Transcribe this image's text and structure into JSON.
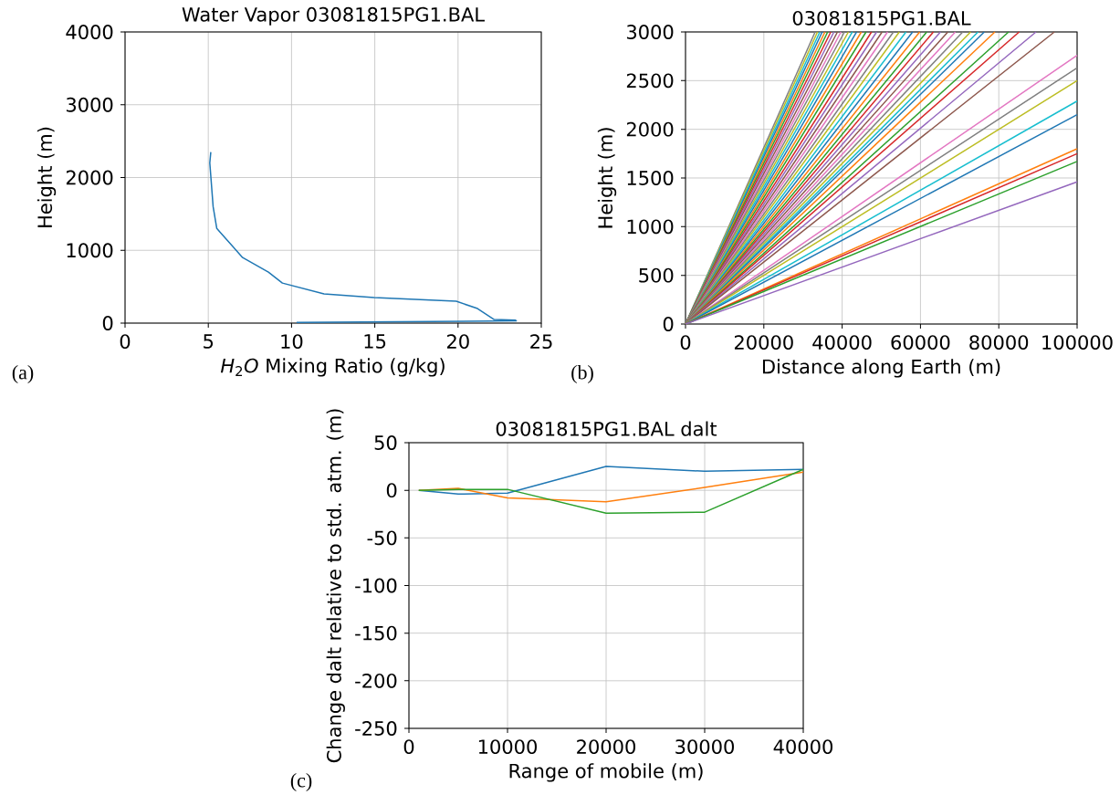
{
  "chart_data": [
    {
      "type": "line",
      "title": "Water Vapor 03081815PG1.BAL",
      "xlabel": "*H*$_{2}$*O* Mixing Ratio (g/kg)",
      "ylabel": "Height (m)",
      "xlim": [
        0,
        25
      ],
      "ylim": [
        0,
        4000
      ],
      "xticks": [
        0,
        5,
        10,
        15,
        20,
        25
      ],
      "yticks": [
        0,
        1000,
        2000,
        3000,
        4000
      ],
      "grid": true,
      "annotations": [
        "(a)"
      ],
      "series": [
        {
          "color": "#1f77b4",
          "x": [
            5.15,
            5.09,
            5.29,
            5.51,
            7.06,
            8.61,
            9.45,
            11.95,
            14.96,
            19.89,
            21.17,
            22.17,
            23.45,
            23.5,
            10.3
          ],
          "values": [
            2350,
            2200,
            1600,
            1300,
            900,
            700,
            550,
            400,
            350,
            300,
            200,
            50,
            40,
            30,
            10
          ]
        }
      ]
    },
    {
      "type": "line",
      "title": "03081815PG1.BAL",
      "xlabel": "Distance along Earth (m)",
      "ylabel": "Height (m)",
      "xlim": [
        0,
        100000
      ],
      "ylim": [
        0,
        3000
      ],
      "xticks": [
        0,
        20000,
        40000,
        60000,
        80000,
        100000
      ],
      "yticks": [
        0,
        500,
        1000,
        1500,
        2000,
        2500,
        3000
      ],
      "grid": true,
      "annotations": [
        "(b)"
      ],
      "series": [
        {
          "color": "#7f7f7f",
          "x": [
            0,
            33100
          ],
          "values": [
            0,
            3000
          ]
        },
        {
          "color": "#bcbd22",
          "x": [
            0,
            33700
          ],
          "values": [
            0,
            3000
          ]
        },
        {
          "color": "#17becf",
          "x": [
            0,
            34300
          ],
          "values": [
            0,
            3000
          ]
        },
        {
          "color": "#1f77b4",
          "x": [
            0,
            34900
          ],
          "values": [
            0,
            3000
          ]
        },
        {
          "color": "#ff7f0e",
          "x": [
            0,
            35600
          ],
          "values": [
            0,
            3000
          ]
        },
        {
          "color": "#2ca02c",
          "x": [
            0,
            36300
          ],
          "values": [
            0,
            3000
          ]
        },
        {
          "color": "#d62728",
          "x": [
            0,
            37100
          ],
          "values": [
            0,
            3000
          ]
        },
        {
          "color": "#9467bd",
          "x": [
            0,
            37900
          ],
          "values": [
            0,
            3000
          ]
        },
        {
          "color": "#8c564b",
          "x": [
            0,
            38800
          ],
          "values": [
            0,
            3000
          ]
        },
        {
          "color": "#e377c2",
          "x": [
            0,
            39700
          ],
          "values": [
            0,
            3000
          ]
        },
        {
          "color": "#7f7f7f",
          "x": [
            0,
            40600
          ],
          "values": [
            0,
            3000
          ]
        },
        {
          "color": "#bcbd22",
          "x": [
            0,
            41600
          ],
          "values": [
            0,
            3000
          ]
        },
        {
          "color": "#17becf",
          "x": [
            0,
            42600
          ],
          "values": [
            0,
            3000
          ]
        },
        {
          "color": "#1f77b4",
          "x": [
            0,
            43700
          ],
          "values": [
            0,
            3000
          ]
        },
        {
          "color": "#ff7f0e",
          "x": [
            0,
            44900
          ],
          "values": [
            0,
            3000
          ]
        },
        {
          "color": "#2ca02c",
          "x": [
            0,
            46100
          ],
          "values": [
            0,
            3000
          ]
        },
        {
          "color": "#d62728",
          "x": [
            0,
            47500
          ],
          "values": [
            0,
            3000
          ]
        },
        {
          "color": "#9467bd",
          "x": [
            0,
            48800
          ],
          "values": [
            0,
            3000
          ]
        },
        {
          "color": "#8c564b",
          "x": [
            0,
            50200
          ],
          "values": [
            0,
            3000
          ]
        },
        {
          "color": "#e377c2",
          "x": [
            0,
            51600
          ],
          "values": [
            0,
            3000
          ]
        },
        {
          "color": "#7f7f7f",
          "x": [
            0,
            53100
          ],
          "values": [
            0,
            3000
          ]
        },
        {
          "color": "#bcbd22",
          "x": [
            0,
            54600
          ],
          "values": [
            0,
            3000
          ]
        },
        {
          "color": "#17becf",
          "x": [
            0,
            56300
          ],
          "values": [
            0,
            3000
          ]
        },
        {
          "color": "#1f77b4",
          "x": [
            0,
            58000
          ],
          "values": [
            0,
            3000
          ]
        },
        {
          "color": "#ff7f0e",
          "x": [
            0,
            59800
          ],
          "values": [
            0,
            3000
          ]
        },
        {
          "color": "#2ca02c",
          "x": [
            0,
            61600
          ],
          "values": [
            0,
            3000
          ]
        },
        {
          "color": "#d62728",
          "x": [
            0,
            63300
          ],
          "values": [
            0,
            3000
          ]
        },
        {
          "color": "#9467bd",
          "x": [
            0,
            65100
          ],
          "values": [
            0,
            3000
          ]
        },
        {
          "color": "#8c564b",
          "x": [
            0,
            67000
          ],
          "values": [
            0,
            3000
          ]
        },
        {
          "color": "#e377c2",
          "x": [
            0,
            68900
          ],
          "values": [
            0,
            3000
          ]
        },
        {
          "color": "#7f7f7f",
          "x": [
            0,
            70800
          ],
          "values": [
            0,
            3000
          ]
        },
        {
          "color": "#bcbd22",
          "x": [
            0,
            72800
          ],
          "values": [
            0,
            3000
          ]
        },
        {
          "color": "#17becf",
          "x": [
            0,
            74700
          ],
          "values": [
            0,
            3000
          ]
        },
        {
          "color": "#1f77b4",
          "x": [
            0,
            76300
          ],
          "values": [
            0,
            3000
          ]
        },
        {
          "color": "#ff7f0e",
          "x": [
            0,
            79000
          ],
          "values": [
            0,
            3000
          ]
        },
        {
          "color": "#2ca02c",
          "x": [
            0,
            82500
          ],
          "values": [
            0,
            3000
          ]
        },
        {
          "color": "#d62728",
          "x": [
            0,
            85200
          ],
          "values": [
            0,
            3000
          ]
        },
        {
          "color": "#9467bd",
          "x": [
            0,
            89500
          ],
          "values": [
            0,
            3000
          ]
        },
        {
          "color": "#8c564b",
          "x": [
            0,
            94200
          ],
          "values": [
            0,
            3000
          ]
        },
        {
          "color": "#e377c2",
          "x": [
            0,
            100000
          ],
          "values": [
            0,
            2760
          ]
        },
        {
          "color": "#7f7f7f",
          "x": [
            0,
            100000
          ],
          "values": [
            0,
            2630
          ]
        },
        {
          "color": "#bcbd22",
          "x": [
            0,
            100000
          ],
          "values": [
            0,
            2500
          ]
        },
        {
          "color": "#17becf",
          "x": [
            0,
            100000
          ],
          "values": [
            0,
            2290
          ]
        },
        {
          "color": "#1f77b4",
          "x": [
            0,
            100000
          ],
          "values": [
            0,
            2150
          ]
        },
        {
          "color": "#ff7f0e",
          "x": [
            0,
            100000
          ],
          "values": [
            0,
            1800
          ]
        },
        {
          "color": "#d62728",
          "x": [
            0,
            100000
          ],
          "values": [
            0,
            1750
          ]
        },
        {
          "color": "#2ca02c",
          "x": [
            0,
            100000
          ],
          "values": [
            0,
            1670
          ]
        },
        {
          "color": "#9467bd",
          "x": [
            0,
            100000
          ],
          "values": [
            0,
            1460
          ]
        }
      ]
    },
    {
      "type": "line",
      "title": "03081815PG1.BAL dalt",
      "xlabel": "Range of mobile (m)",
      "ylabel": "Change  dalt relative to std. atm. (m)",
      "xlim": [
        0,
        40000
      ],
      "ylim": [
        -250,
        50
      ],
      "xticks": [
        0,
        10000,
        20000,
        30000,
        40000
      ],
      "yticks": [
        -250,
        -200,
        -150,
        -100,
        -50,
        0,
        50
      ],
      "grid": true,
      "annotations": [
        "(c)"
      ],
      "x": [
        1000,
        5000,
        10000,
        20000,
        30000,
        40000
      ],
      "series": [
        {
          "color": "#1f77b4",
          "values": [
            0,
            -4,
            -3,
            25,
            20,
            22
          ]
        },
        {
          "color": "#ff7f0e",
          "values": [
            0,
            2,
            -8,
            -12,
            3,
            19
          ]
        },
        {
          "color": "#2ca02c",
          "values": [
            0,
            1,
            1,
            -24,
            -23,
            22
          ]
        }
      ]
    }
  ]
}
